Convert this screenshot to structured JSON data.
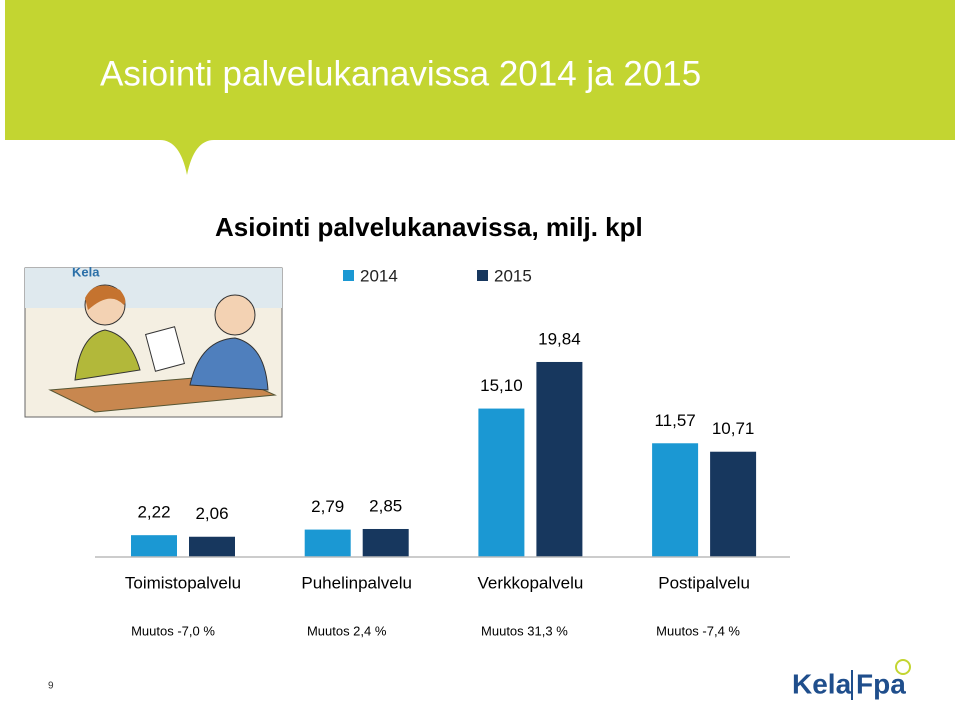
{
  "slide_title": "Asiointi palvelukanavissa 2014 ja 2015",
  "illustration_sign": "Kela",
  "page_number": "9",
  "logo": {
    "left": "Kela",
    "right": "Fpa"
  },
  "chart_data": {
    "type": "bar",
    "title": "Asiointi palvelukanavissa, milj. kpl",
    "categories": [
      "Toimistopalvelu",
      "Puhelinpalvelu",
      "Verkkopalvelu",
      "Postipalvelu"
    ],
    "series": [
      {
        "name": "2014",
        "color": "#1b98d3",
        "values": [
          2.22,
          2.79,
          15.1,
          11.57
        ],
        "value_labels": [
          "2,22",
          "2,79",
          "15,10",
          "11,57"
        ]
      },
      {
        "name": "2015",
        "color": "#17375e",
        "values": [
          2.06,
          2.85,
          19.84,
          10.71
        ],
        "value_labels": [
          "2,06",
          "2,85",
          "19,84",
          "10,71"
        ]
      }
    ],
    "annotations": [
      "Muutos -7,0 %",
      "Muutos 2,4 %",
      "Muutos 31,3 %",
      "Muutos -7,4 %"
    ]
  }
}
